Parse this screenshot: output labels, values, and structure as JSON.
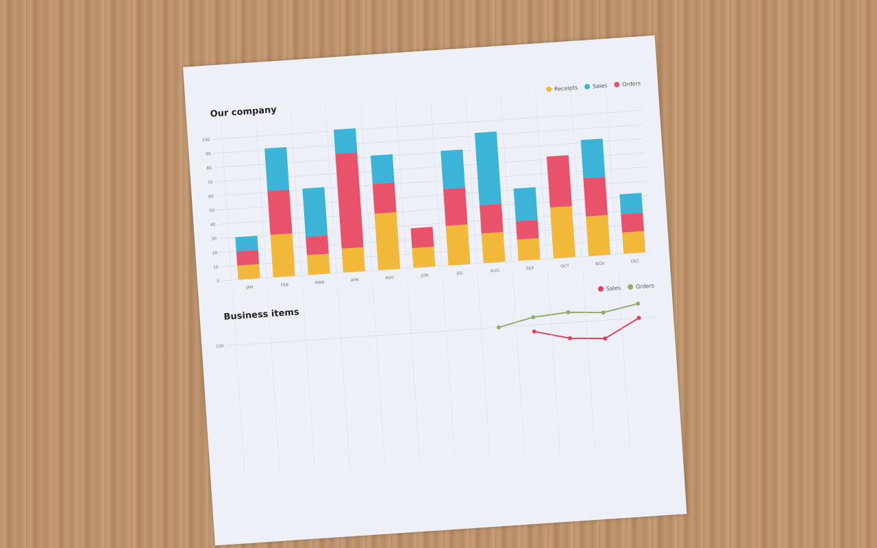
{
  "chart_data": [
    {
      "type": "stacked-bar",
      "title": "Our company",
      "categories": [
        "JAN",
        "FEB",
        "MAR",
        "APR",
        "MAY",
        "JUN",
        "JUL",
        "AUG",
        "SEP",
        "OCT",
        "NOV",
        "DEC"
      ],
      "series": [
        {
          "name": "Receipts",
          "color": "#f2b83a",
          "values": [
            10,
            30,
            14,
            17,
            40,
            14,
            28,
            21,
            15,
            36,
            28,
            15
          ]
        },
        {
          "name": "Sales",
          "color": "#3bb4d8",
          "values": [
            10,
            30,
            34,
            17,
            20,
            0,
            27,
            51,
            23,
            0,
            27,
            14
          ]
        },
        {
          "name": "Orders",
          "color": "#e8526a",
          "values": [
            10,
            31,
            13,
            67,
            21,
            14,
            26,
            20,
            13,
            36,
            27,
            13
          ]
        }
      ],
      "ylim": [
        0,
        100
      ],
      "yticks": [
        0,
        10,
        20,
        30,
        40,
        50,
        60,
        70,
        80,
        90,
        100
      ],
      "grid": true
    },
    {
      "type": "line",
      "title": "Business items",
      "categories": [
        null,
        null,
        null,
        null,
        null,
        null,
        null,
        null,
        null,
        null,
        null,
        null
      ],
      "series": [
        {
          "name": "Sales",
          "color": "#e8405a",
          "values": [
            null,
            null,
            null,
            null,
            null,
            null,
            null,
            null,
            95,
            88,
            86,
            100
          ]
        },
        {
          "name": "Orders",
          "color": "#8fae6a",
          "values": [
            null,
            null,
            null,
            null,
            null,
            null,
            null,
            100,
            106,
            108,
            106,
            111
          ]
        }
      ],
      "ylim": [
        0,
        120
      ],
      "yticks": [
        100
      ],
      "grid": true
    }
  ]
}
